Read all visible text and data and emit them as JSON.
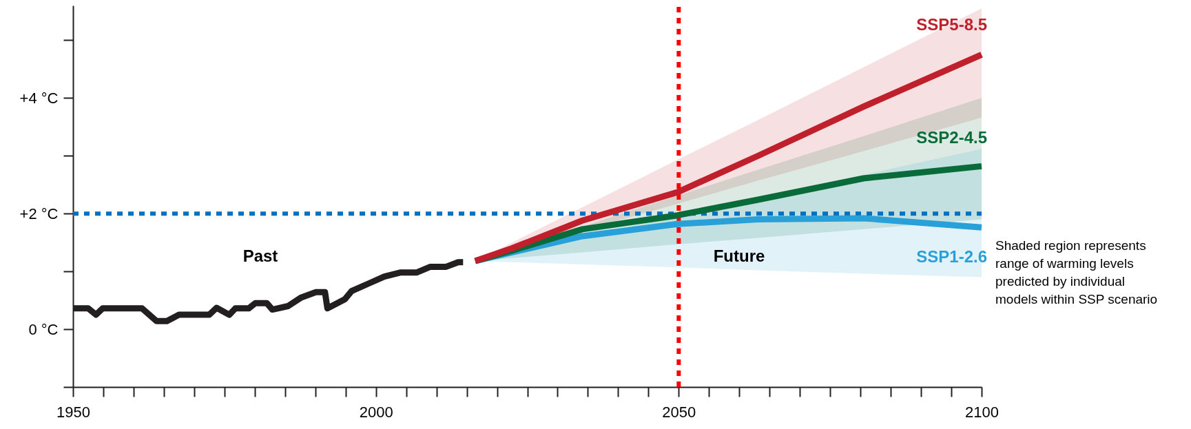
{
  "chart_data": {
    "type": "line",
    "x": [
      2016.4,
      2022.5,
      2034.1,
      2049.8,
      2063.1,
      2080.5,
      2100
    ],
    "series": [
      {
        "color": "#231f20",
        "x": [
          1950,
          1952.5,
          1953.8,
          1954.9,
          1961.4,
          1963.8,
          1965.5,
          1967.5,
          1972.5,
          1973.7,
          1975.8,
          1976.8,
          1979.0,
          1980.1,
          1982.0,
          1982.9,
          1985.5,
          1987.7,
          1990.1,
          1991.6,
          1992.0,
          1994.9,
          1996.0,
          1998.8,
          2001.4,
          2004.0,
          2006.7,
          2009.0,
          2011.6,
          2013.6,
          2014.4
        ],
        "values": [
          0.36,
          0.36,
          0.25,
          0.36,
          0.36,
          0.14,
          0.14,
          0.25,
          0.25,
          0.37,
          0.25,
          0.36,
          0.36,
          0.45,
          0.45,
          0.34,
          0.4,
          0.55,
          0.64,
          0.64,
          0.36,
          0.52,
          0.66,
          0.79,
          0.91,
          0.98,
          0.98,
          1.08,
          1.08,
          1.16,
          1.16
        ]
      },
      {
        "name": "SSP5-8.5",
        "color": "#c0202c",
        "values": [
          1.18,
          1.4,
          1.88,
          2.37,
          3.0,
          3.85,
          4.75
        ],
        "lower": [
          1.18,
          1.36,
          1.71,
          2.17,
          2.57,
          3.08,
          3.66
        ],
        "upper": [
          1.18,
          1.5,
          2.11,
          2.93,
          3.62,
          4.53,
          5.55
        ]
      },
      {
        "name": "SSP2-4.5",
        "color": "#0a6b3a",
        "values": [
          1.18,
          1.36,
          1.73,
          1.97,
          2.24,
          2.61,
          2.82
        ],
        "lower": [
          1.18,
          1.23,
          1.33,
          1.47,
          1.58,
          1.73,
          1.9
        ],
        "upper": [
          1.18,
          1.39,
          1.78,
          2.31,
          2.76,
          3.34,
          4.0
        ]
      },
      {
        "name": "SSP1-2.6",
        "color": "#2aa0d8",
        "values": [
          1.18,
          1.33,
          1.61,
          1.82,
          1.9,
          1.92,
          1.76
        ],
        "lower": [
          1.18,
          1.16,
          1.12,
          1.07,
          1.02,
          0.96,
          0.9
        ],
        "upper": [
          1.18,
          1.32,
          1.59,
          1.96,
          2.26,
          2.67,
          3.12
        ]
      }
    ],
    "xlim": [
      1950,
      2100
    ],
    "xticks": [
      1950,
      {
        "value": 1955,
        "label": null
      },
      {
        "value": 1960,
        "label": null
      },
      {
        "value": 1965,
        "label": null
      },
      {
        "value": 1970,
        "label": null
      },
      {
        "value": 1975,
        "label": null
      },
      {
        "value": 1980,
        "label": null
      },
      {
        "value": 1985,
        "label": null
      },
      {
        "value": 1990,
        "label": null
      },
      {
        "value": 1995,
        "label": null
      },
      2000,
      {
        "value": 2005,
        "label": null
      },
      {
        "value": 2010,
        "label": null
      },
      {
        "value": 2015,
        "label": null
      },
      {
        "value": 2020,
        "label": null
      },
      {
        "value": 2025,
        "label": null
      },
      {
        "value": 2030,
        "label": null
      },
      {
        "value": 2035,
        "label": null
      },
      {
        "value": 2040,
        "label": null
      },
      {
        "value": 2045,
        "label": null
      },
      2050,
      {
        "value": 2055,
        "label": null
      },
      {
        "value": 2060,
        "label": null
      },
      {
        "value": 2065,
        "label": null
      },
      {
        "value": 2070,
        "label": null
      },
      {
        "value": 2075,
        "label": null
      },
      {
        "value": 2080,
        "label": null
      },
      {
        "value": 2085,
        "label": null
      },
      {
        "value": 2090,
        "label": null
      },
      {
        "value": 2095,
        "label": null
      },
      2100
    ],
    "ylim": [
      -1,
      5.6
    ],
    "yticks": [
      {
        "value": -1,
        "label": null
      },
      {
        "value": 0,
        "label": "0 °C"
      },
      {
        "value": 1,
        "label": null
      },
      {
        "value": 2,
        "label": "+2 °C"
      },
      {
        "value": 3,
        "label": null
      },
      {
        "value": 4,
        "label": "+4 °C"
      },
      {
        "value": 5,
        "label": null
      }
    ],
    "ref_lines": [
      {
        "axis": "x",
        "value": 2050,
        "color": "#ff0000",
        "line_style": "dotted"
      },
      {
        "axis": "y",
        "value": 2,
        "color": "#0070c0",
        "line_style": "dotted"
      }
    ],
    "annotations": [
      "Past",
      "Future",
      "Shaded region represents range of warming levels predicted by individual models within SSP scenario"
    ],
    "line_style": "solid",
    "marker": "none",
    "grid": false
  }
}
